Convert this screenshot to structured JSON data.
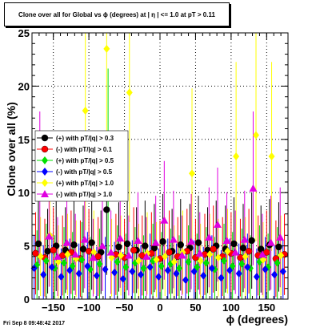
{
  "chart_data": {
    "type": "scatter",
    "title": "Clone  over all for Global vs ϕ (degrees) at | η | <= 1.0 at pT > 0.11",
    "xlabel": "ϕ (degrees)",
    "ylabel": "Clone  over all (%)",
    "xlim": [
      -180,
      180
    ],
    "ylim": [
      0,
      25
    ],
    "x_ticks": [
      -150,
      -100,
      -50,
      0,
      50,
      100,
      150
    ],
    "x_tick_labels": [
      "−150",
      "−100",
      "−50",
      "0",
      "50",
      "100",
      "150"
    ],
    "y_ticks": [
      0,
      5,
      10,
      15,
      20,
      25
    ],
    "y_tick_labels": [
      "0",
      "5",
      "10",
      "15",
      "20",
      "25"
    ],
    "grid": true,
    "legend_placement": "left-middle",
    "series": [
      {
        "name": "(+) with pT/|q| > 0.3",
        "color": "#000000",
        "marker": "circle",
        "points": [
          [
            -171,
            5.2
          ],
          [
            -158,
            4.5
          ],
          [
            -146,
            5.0
          ],
          [
            -133,
            4.6
          ],
          [
            -121,
            5.1
          ],
          [
            -108,
            4.7
          ],
          [
            -96,
            5.3
          ],
          [
            -83,
            4.4
          ],
          [
            -75,
            8.4
          ],
          [
            -58,
            4.9
          ],
          [
            -46,
            5.2
          ],
          [
            -33,
            4.6
          ],
          [
            -21,
            5.0
          ],
          [
            -8,
            4.8
          ],
          [
            4,
            5.4
          ],
          [
            17,
            4.5
          ],
          [
            29,
            5.1
          ],
          [
            42,
            4.8
          ],
          [
            54,
            5.3
          ],
          [
            67,
            4.6
          ],
          [
            79,
            5.0
          ],
          [
            92,
            4.7
          ],
          [
            104,
            5.2
          ],
          [
            117,
            4.8
          ],
          [
            129,
            5.5
          ],
          [
            142,
            4.7
          ],
          [
            154,
            5.1
          ],
          [
            167,
            4.9
          ]
        ]
      },
      {
        "name": "(-) with pT/|q| > 0.1",
        "color": "#ff0000",
        "marker": "circle",
        "points": [
          [
            -175,
            4.3
          ],
          [
            -162,
            3.9
          ],
          [
            -150,
            4.6
          ],
          [
            -137,
            4.1
          ],
          [
            -125,
            4.4
          ],
          [
            -112,
            3.8
          ],
          [
            -100,
            4.5
          ],
          [
            -87,
            4.0
          ],
          [
            -62,
            4.2
          ],
          [
            -50,
            3.9
          ],
          [
            -37,
            4.6
          ],
          [
            -25,
            4.1
          ],
          [
            -12,
            4.3
          ],
          [
            0,
            3.8
          ],
          [
            13,
            4.4
          ],
          [
            25,
            4.0
          ],
          [
            38,
            4.5
          ],
          [
            50,
            3.9
          ],
          [
            63,
            4.2
          ],
          [
            75,
            4.7
          ],
          [
            88,
            4.0
          ],
          [
            100,
            4.3
          ],
          [
            113,
            3.9
          ],
          [
            125,
            4.5
          ],
          [
            138,
            4.1
          ],
          [
            150,
            4.4
          ],
          [
            163,
            3.8
          ],
          [
            175,
            4.2
          ]
        ]
      },
      {
        "name": "(+) with pT/|q| > 0.5",
        "color": "#00e000",
        "marker": "diamond",
        "points": [
          [
            -173,
            3.2
          ],
          [
            -160,
            3.6
          ],
          [
            -148,
            2.9
          ],
          [
            -135,
            3.4
          ],
          [
            -123,
            3.1
          ],
          [
            -110,
            3.7
          ],
          [
            -98,
            2.8
          ],
          [
            -85,
            3.3
          ],
          [
            -73,
            13.0
          ],
          [
            -60,
            3.5
          ],
          [
            -48,
            3.0
          ],
          [
            -35,
            3.4
          ],
          [
            -23,
            2.9
          ],
          [
            -10,
            3.6
          ],
          [
            2,
            3.1
          ],
          [
            15,
            3.3
          ],
          [
            27,
            2.9
          ],
          [
            40,
            3.5
          ],
          [
            52,
            3.0
          ],
          [
            65,
            3.4
          ],
          [
            77,
            2.8
          ],
          [
            90,
            3.6
          ],
          [
            102,
            3.1
          ],
          [
            115,
            3.3
          ],
          [
            127,
            2.9
          ],
          [
            140,
            3.5
          ],
          [
            152,
            3.0
          ],
          [
            165,
            3.4
          ]
        ]
      },
      {
        "name": "(-) with pT/|q| > 0.5",
        "color": "#0000ff",
        "marker": "diamond",
        "points": [
          [
            -177,
            2.9
          ],
          [
            -164,
            2.3
          ],
          [
            -152,
            3.0
          ],
          [
            -139,
            2.1
          ],
          [
            -127,
            2.7
          ],
          [
            -114,
            2.4
          ],
          [
            -102,
            3.1
          ],
          [
            -89,
            2.2
          ],
          [
            -77,
            2.8
          ],
          [
            -64,
            2.5
          ],
          [
            -52,
            1.9
          ],
          [
            -39,
            2.6
          ],
          [
            -27,
            2.3
          ],
          [
            -14,
            3.0
          ],
          [
            -2,
            2.1
          ],
          [
            11,
            2.7
          ],
          [
            23,
            2.4
          ],
          [
            36,
            1.8
          ],
          [
            48,
            2.6
          ],
          [
            61,
            2.2
          ],
          [
            73,
            2.9
          ],
          [
            86,
            2.0
          ],
          [
            98,
            2.7
          ],
          [
            111,
            2.4
          ],
          [
            123,
            3.0
          ],
          [
            136,
            2.1
          ],
          [
            148,
            2.8
          ],
          [
            161,
            2.3
          ],
          [
            173,
            2.6
          ]
        ]
      },
      {
        "name": "(+) with pT/|q| > 1.0",
        "color": "#ffff00",
        "marker": "diamond",
        "points": [
          [
            -168,
            4.0
          ],
          [
            -155,
            6.0
          ],
          [
            -143,
            3.5
          ],
          [
            -130,
            4.2
          ],
          [
            -118,
            3.8
          ],
          [
            -105,
            17.7
          ],
          [
            -93,
            4.4
          ],
          [
            -75,
            23.5
          ],
          [
            -68,
            3.9
          ],
          [
            -55,
            4.1
          ],
          [
            -43,
            19.4
          ],
          [
            -30,
            3.6
          ],
          [
            -18,
            4.3
          ],
          [
            -5,
            3.7
          ],
          [
            7,
            4.0
          ],
          [
            20,
            3.5
          ],
          [
            32,
            4.4
          ],
          [
            45,
            11.8
          ],
          [
            57,
            3.6
          ],
          [
            70,
            4.2
          ],
          [
            82,
            3.9
          ],
          [
            95,
            4.5
          ],
          [
            107,
            13.4
          ],
          [
            120,
            4.0
          ],
          [
            135,
            15.4
          ],
          [
            145,
            3.7
          ],
          [
            157,
            13.4
          ],
          [
            170,
            4.1
          ]
        ]
      },
      {
        "name": "(-) with pT/|q| > 1.0",
        "color": "#e000e0",
        "marker": "triangle",
        "points": [
          [
            -169,
            10.4
          ],
          [
            -156,
            5.9
          ],
          [
            -144,
            4.0
          ],
          [
            -131,
            5.3
          ],
          [
            -119,
            4.2
          ],
          [
            -106,
            5.6
          ],
          [
            -94,
            3.9
          ],
          [
            -81,
            5.0
          ],
          [
            -69,
            4.4
          ],
          [
            -56,
            5.7
          ],
          [
            -44,
            4.1
          ],
          [
            -31,
            5.5
          ],
          [
            -19,
            4.0
          ],
          [
            -6,
            5.3
          ],
          [
            6,
            7.4
          ],
          [
            19,
            5.6
          ],
          [
            31,
            4.1
          ],
          [
            44,
            5.4
          ],
          [
            56,
            4.3
          ],
          [
            69,
            5.8
          ],
          [
            81,
            7.0
          ],
          [
            94,
            5.5
          ],
          [
            106,
            4.4
          ],
          [
            119,
            5.6
          ],
          [
            131,
            10.4
          ],
          [
            144,
            4.2
          ],
          [
            156,
            5.3
          ],
          [
            169,
            5.8
          ]
        ]
      }
    ]
  },
  "footer": "Fri Sep  8 09:48:42 2017"
}
